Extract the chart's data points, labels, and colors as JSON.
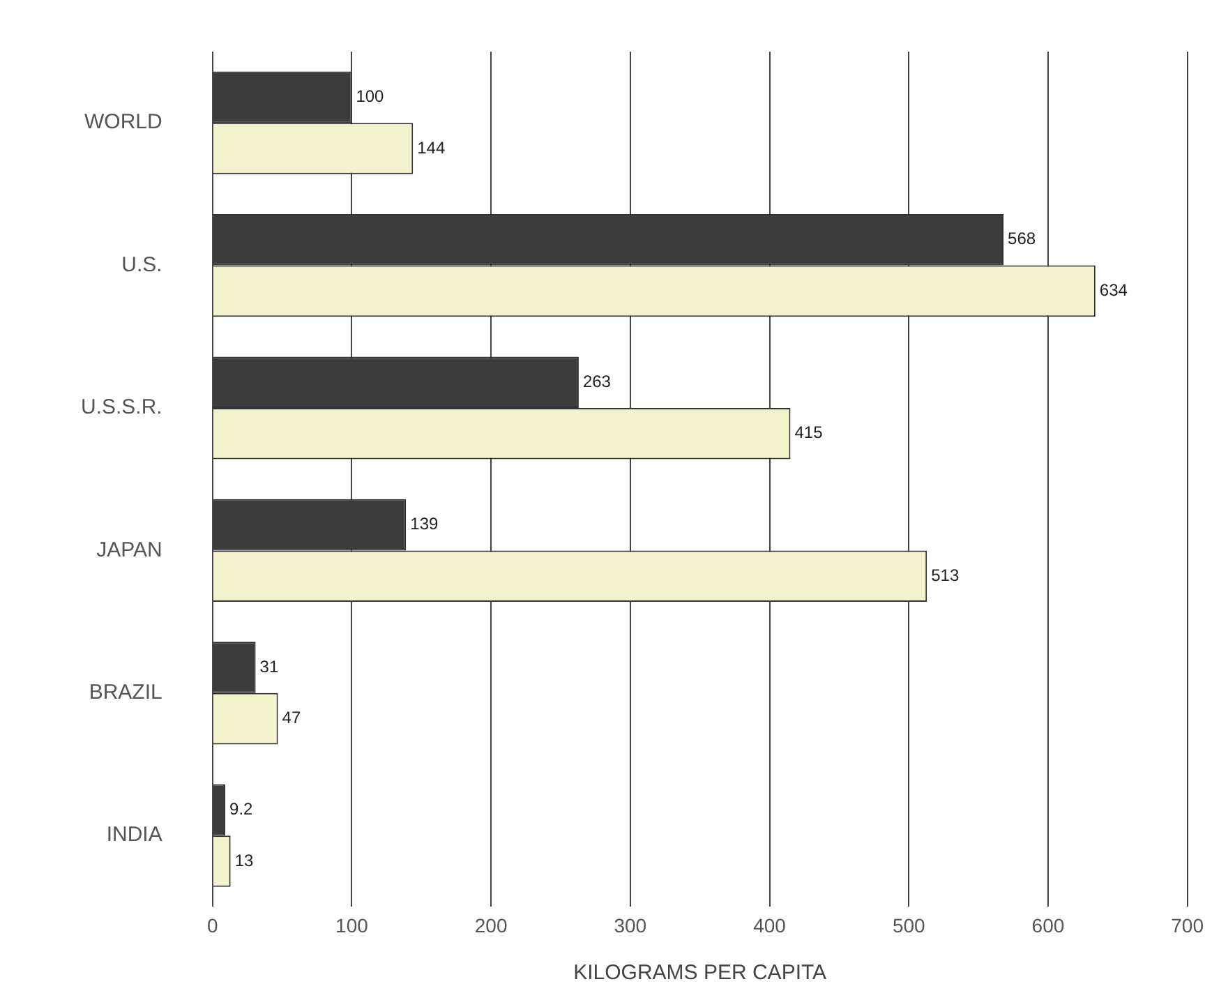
{
  "chart_data": {
    "type": "bar",
    "orientation": "horizontal",
    "xlabel": "KILOGRAMS PER CAPITA",
    "categories": [
      "WORLD",
      "U.S.",
      "U.S.S.R.",
      "JAPAN",
      "BRAZIL",
      "INDIA"
    ],
    "series": [
      {
        "color": "#3c3c3c",
        "values": [
          100,
          568,
          263,
          139,
          31,
          9.2
        ]
      },
      {
        "color": "#f2f2cc",
        "values": [
          144,
          634,
          415,
          513,
          47,
          13
        ]
      }
    ],
    "xlim": [
      0,
      700
    ],
    "xticks": [
      0,
      100,
      200,
      300,
      400,
      500,
      600,
      700
    ],
    "grid": "x",
    "legend": false,
    "data_labels": true
  }
}
